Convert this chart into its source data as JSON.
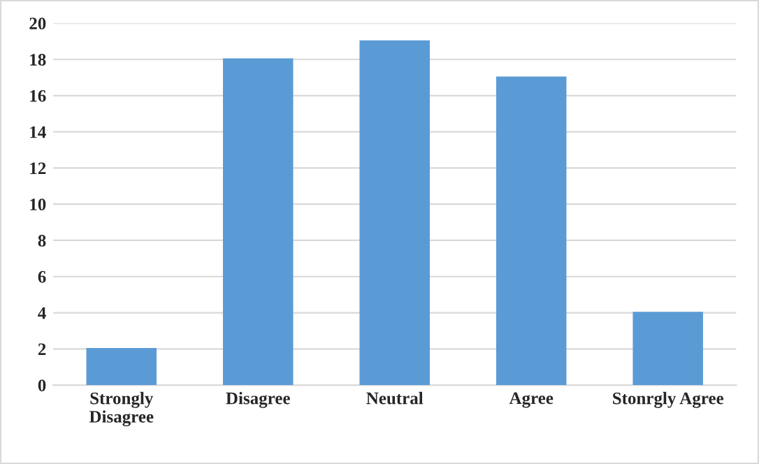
{
  "chart_data": {
    "type": "bar",
    "categories": [
      "Strongly\nDisagree",
      "Disagree",
      "Neutral",
      "Agree",
      "Stonrgly Agree"
    ],
    "values": [
      2,
      18,
      19,
      17,
      4
    ],
    "color": "#5b9bd5",
    "ylim": [
      0,
      20
    ],
    "yticks": [
      0,
      2,
      4,
      6,
      8,
      10,
      12,
      14,
      16,
      18,
      20
    ],
    "grid": "y",
    "legend": false
  }
}
